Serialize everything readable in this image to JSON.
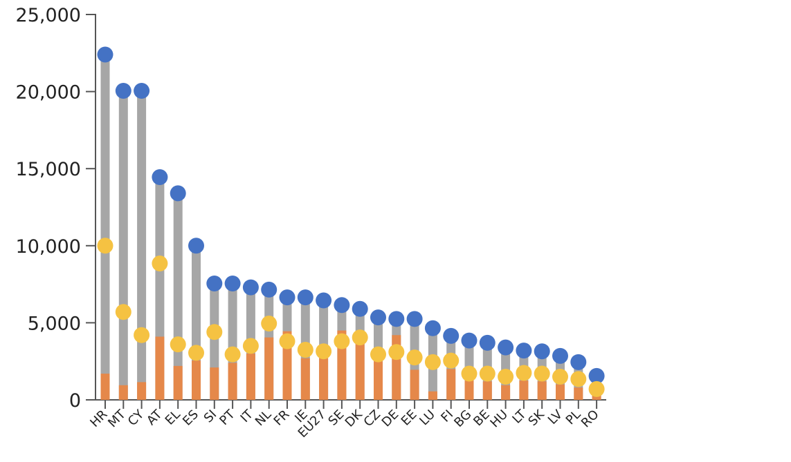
{
  "chart_data": {
    "type": "bar",
    "categories": [
      "HR",
      "MT",
      "CY",
      "AT",
      "EL",
      "ES",
      "SI",
      "PT",
      "IT",
      "NL",
      "FR",
      "IE",
      "EU27",
      "SE",
      "DK",
      "CZ",
      "DE",
      "EE",
      "LU",
      "FI",
      "BG",
      "BE",
      "HU",
      "LT",
      "SK",
      "LV",
      "PL",
      "RO"
    ],
    "series": [
      {
        "values": [
          22400,
          20050,
          20050,
          14450,
          13400,
          10000,
          7550,
          7550,
          7300,
          7150,
          6650,
          6650,
          6450,
          6150,
          5900,
          5350,
          5250,
          5250,
          4650,
          4150,
          3850,
          3700,
          3400,
          3200,
          3150,
          2850,
          2450,
          1550
        ]
      },
      {
        "values": [
          1700,
          950,
          1150,
          4100,
          2200,
          2550,
          2100,
          2400,
          3000,
          4050,
          4450,
          2700,
          2700,
          4500,
          3650,
          2500,
          4200,
          1950,
          550,
          2000,
          1250,
          1200,
          950,
          1250,
          1200,
          1000,
          800,
          300
        ]
      },
      {
        "values": [
          10000,
          5700,
          4200,
          8850,
          3600,
          3050,
          4400,
          2950,
          3500,
          4950,
          3800,
          3250,
          3150,
          3800,
          4050,
          2950,
          3100,
          2750,
          2450,
          2550,
          1700,
          1700,
          1500,
          1750,
          1700,
          1500,
          1350,
          700
        ]
      }
    ],
    "yticks": [
      0,
      5000,
      10000,
      15000,
      20000,
      25000
    ],
    "ytick_labels": [
      "0",
      "5,000",
      "10,000",
      "15,000",
      "20,000",
      "25,000"
    ],
    "ylim": [
      0,
      25000
    ],
    "grid": false,
    "legend": "none",
    "colors": {
      "high_dot": "#4472c4",
      "range_bar": "#a6a6a6",
      "low_bar": "#e5884a",
      "mid_dot": "#f5c242",
      "axis": "#555555"
    }
  }
}
